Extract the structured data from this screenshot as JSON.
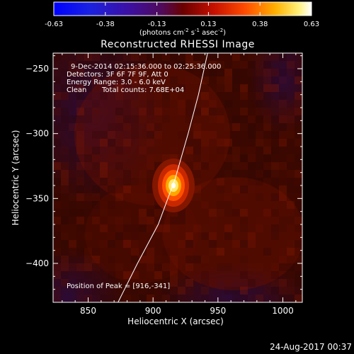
{
  "colorbar": {
    "ticks": [
      "-0.63",
      "-0.38",
      "-0.13",
      "0.13",
      "0.38",
      "0.63"
    ],
    "units_prefix": "(photons cm",
    "units_exp1": "-2",
    "units_mid1": " s",
    "units_exp2": "-1",
    "units_mid2": " asec",
    "units_exp3": "-2",
    "units_suffix": ")",
    "range": [
      -0.63,
      0.63
    ]
  },
  "chart_data": {
    "type": "heatmap",
    "title": "Reconstructed RHESSI Image",
    "xlabel": "Heliocentric X (arcsec)",
    "ylabel": "Heliocentric Y (arcsec)",
    "xlim": [
      823,
      1015
    ],
    "ylim": [
      -430,
      -238
    ],
    "x_ticks": [
      850,
      900,
      950,
      1000
    ],
    "y_ticks": [
      -250,
      -300,
      -350,
      -400
    ],
    "x_tick_labels": [
      "850",
      "900",
      "950",
      "1000"
    ],
    "y_tick_labels": [
      "−250",
      "−300",
      "−350",
      "−400"
    ],
    "peak": {
      "x": 916,
      "y": -341
    },
    "limb_curve_points": [
      {
        "x": 942,
        "y": -238
      },
      {
        "x": 935,
        "y": -270
      },
      {
        "x": 927,
        "y": -300
      },
      {
        "x": 917,
        "y": -335
      },
      {
        "x": 904,
        "y": -370
      },
      {
        "x": 888,
        "y": -400
      },
      {
        "x": 873,
        "y": -430
      }
    ],
    "annotations": {
      "time_range": "9-Dec-2014 02:15:36.000 to 02:25:36.000",
      "detectors": "Detectors: 3F 6F 7F 9F, Att 0",
      "energy": "Energy Range: 3.0 - 6.0 keV",
      "algorithm": "Clean",
      "total_counts": "Total counts: 7.68E+04",
      "peak_position": "Position of Peak = [916,-341]"
    }
  },
  "footer": {
    "date": "24-Aug-2017 00:37"
  }
}
